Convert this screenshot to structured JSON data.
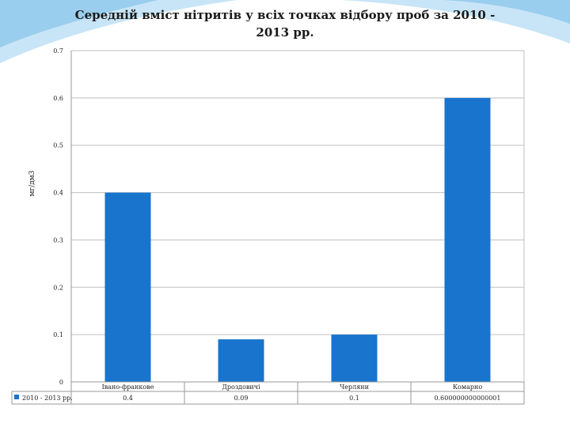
{
  "colors": {
    "bar": "#1874cd",
    "grid": "#bfbfbf",
    "axis": "#9a9a9a"
  },
  "chart_data": {
    "type": "bar",
    "title": "Середній вміст нітритів у всіх точках відбору проб за 2010 - 2013 рр.",
    "title_lines": [
      "Середній вміст нітритів у всіх точках відбору проб за 2010 -",
      "2013 рр."
    ],
    "ylabel": "мг/дм3",
    "xlabel": "",
    "ylim": [
      0,
      0.7
    ],
    "yticks": [
      0,
      0.1,
      0.2,
      0.3,
      0.4,
      0.5,
      0.6,
      0.7
    ],
    "ytick_labels": [
      "0",
      "0.1",
      "0.2",
      "0.3",
      "0.4",
      "0.5",
      "0.6",
      "0.7"
    ],
    "grid": true,
    "legend": "data-table-left",
    "categories": [
      "Івано-франкове",
      "Дроздовичі",
      "Черляни",
      "Комарно"
    ],
    "series": [
      {
        "name": "2010 - 2013 рр.",
        "values": [
          0.4,
          0.09,
          0.1,
          0.6
        ],
        "value_labels": [
          "0.4",
          "0.09",
          "0.1",
          "0.600000000000001"
        ]
      }
    ]
  }
}
